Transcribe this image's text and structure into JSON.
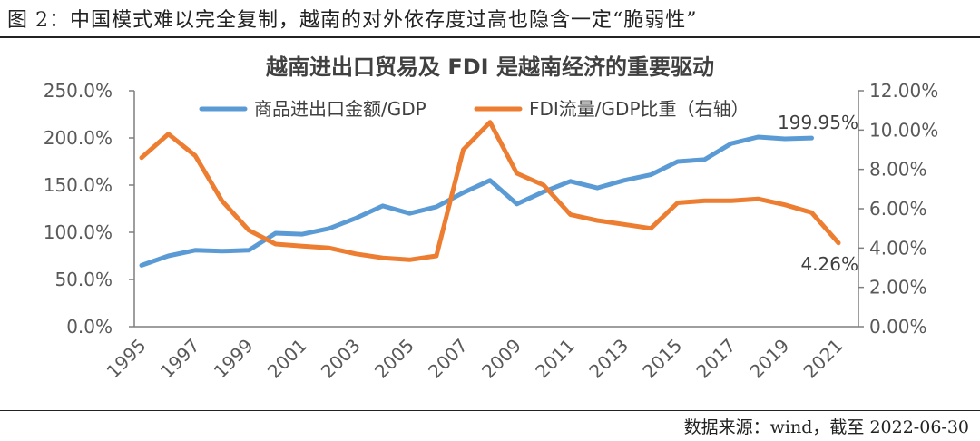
{
  "caption": "图 2：中国模式难以完全复制，越南的对外依存度过高也隐含一定“脆弱性”",
  "source": "数据来源：wind，截至 2022-06-30",
  "colors": {
    "trade": "#5B9BD5",
    "fdi": "#ED7D31",
    "axis": "#7F7F7F"
  },
  "chart_data": {
    "type": "line",
    "title": "越南进出口贸易及 FDI 是越南经济的重要驱动",
    "x": [
      1995,
      1996,
      1997,
      1998,
      1999,
      2000,
      2001,
      2002,
      2003,
      2004,
      2005,
      2006,
      2007,
      2008,
      2009,
      2010,
      2011,
      2012,
      2013,
      2014,
      2015,
      2016,
      2017,
      2018,
      2019,
      2020,
      2021
    ],
    "x_tick_labels": [
      "1995",
      "1997",
      "1999",
      "2001",
      "2003",
      "2005",
      "2007",
      "2009",
      "2011",
      "2013",
      "2015",
      "2017",
      "2019",
      "2021"
    ],
    "y_left": {
      "min": 0,
      "max": 250,
      "ticks": [
        "0.0%",
        "50.0%",
        "100.0%",
        "150.0%",
        "200.0%",
        "250.0%"
      ]
    },
    "y_right": {
      "min": 0,
      "max": 12,
      "ticks": [
        "0.00%",
        "2.00%",
        "4.00%",
        "6.00%",
        "8.00%",
        "10.00%",
        "12.00%"
      ]
    },
    "series": [
      {
        "name": "商品进出口金额/GDP",
        "axis": "left",
        "values": [
          65,
          75,
          81,
          80,
          81,
          99,
          98,
          104,
          115,
          128,
          120,
          127,
          142,
          155,
          130,
          143,
          154,
          147,
          155,
          161,
          175,
          177,
          194,
          201,
          199,
          199.95,
          null
        ]
      },
      {
        "name": "FDI流量/GDP比重（右轴）",
        "axis": "right",
        "values": [
          8.6,
          9.8,
          8.7,
          6.4,
          4.9,
          4.2,
          4.1,
          4.0,
          3.7,
          3.5,
          3.4,
          3.6,
          9.0,
          10.4,
          7.8,
          7.2,
          5.7,
          5.4,
          5.2,
          5.0,
          6.3,
          6.4,
          6.4,
          6.5,
          6.2,
          5.8,
          4.26
        ]
      }
    ],
    "annotations": [
      "199.95%",
      "4.26%"
    ],
    "legend": "top"
  }
}
